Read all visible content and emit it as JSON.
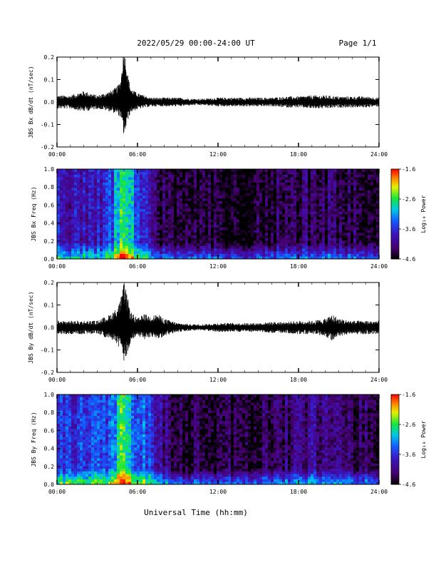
{
  "header": {
    "title": "2022/05/29  00:00-24:00 UT",
    "page": "Page 1/1"
  },
  "xlabel": "Universal Time (hh:mm)",
  "x_ticks": [
    "00:00",
    "06:00",
    "12:00",
    "18:00",
    "24:00"
  ],
  "colorbar": {
    "label": "Log₁₀ Power",
    "ticks": [
      "-1.6",
      "-2.6",
      "-3.6",
      "-4.6"
    ],
    "range": [
      -4.6,
      -1.6
    ]
  },
  "chart_data": [
    {
      "type": "line",
      "id": "bx_timeseries",
      "ylabel": "JBS Bx dB/dt (nT/sec)",
      "x": [
        "00:00",
        "01:00",
        "02:00",
        "03:00",
        "04:00",
        "04:30",
        "04:45",
        "05:00",
        "05:15",
        "05:30",
        "06:00",
        "07:00",
        "08:00",
        "09:00",
        "10:00",
        "11:00",
        "12:00",
        "13:00",
        "14:00",
        "15:00",
        "16:00",
        "17:00",
        "18:00",
        "19:00",
        "20:00",
        "21:00",
        "22:00",
        "23:00",
        "24:00"
      ],
      "series": [
        {
          "values": [
            0.0,
            0.0,
            0.01,
            0.0,
            0.01,
            0.02,
            0.04,
            0.13,
            0.06,
            0.02,
            0.01,
            0.0,
            0.0,
            0.0,
            0.0,
            0.0,
            0.0,
            0.0,
            0.0,
            0.0,
            0.0,
            0.0,
            0.0,
            0.0,
            0.0,
            0.0,
            0.0,
            0.0,
            0.0
          ]
        },
        {
          "values": [
            0.03,
            0.03,
            0.04,
            0.03,
            0.04,
            0.05,
            0.06,
            0.12,
            0.07,
            0.04,
            0.03,
            0.02,
            0.02,
            0.02,
            0.015,
            0.015,
            0.02,
            0.02,
            0.02,
            0.02,
            0.02,
            0.025,
            0.025,
            0.03,
            0.03,
            0.025,
            0.025,
            0.025,
            0.02
          ]
        }
      ],
      "x_ticks": [
        "00:00",
        "06:00",
        "12:00",
        "18:00",
        "24:00"
      ],
      "y_ticks": [
        "0.2",
        "0.1",
        "0.0",
        "-0.1",
        "-0.2"
      ],
      "ylim": [
        -0.2,
        0.2
      ]
    },
    {
      "type": "heatmap",
      "id": "bx_spectrogram",
      "ylabel": "JBS Bx Freq (Hz)",
      "x_ticks": [
        "00:00",
        "06:00",
        "12:00",
        "18:00",
        "24:00"
      ],
      "y_ticks": [
        "1.0",
        "0.8",
        "0.6",
        "0.4",
        "0.2",
        "0.0"
      ],
      "ylim": [
        0.0,
        1.0
      ],
      "power_profile_hours": [
        0,
        1,
        2,
        3,
        4,
        4.5,
        5,
        5.5,
        6,
        6.5,
        7,
        7.5,
        8,
        9,
        10,
        12,
        14,
        16,
        18,
        20,
        22,
        24
      ],
      "power_profile_log10": [
        -3.8,
        -3.9,
        -3.8,
        -3.8,
        -3.6,
        -3.0,
        -2.6,
        -3.0,
        -3.6,
        -3.7,
        -3.8,
        -4.3,
        -4.4,
        -4.5,
        -4.5,
        -4.5,
        -4.5,
        -4.4,
        -4.3,
        -4.3,
        -4.4,
        -4.4
      ]
    },
    {
      "type": "line",
      "id": "by_timeseries",
      "ylabel": "JBS By dB/dt (nT/sec)",
      "x": [
        "00:00",
        "01:00",
        "02:00",
        "03:00",
        "04:00",
        "04:30",
        "04:45",
        "05:00",
        "05:15",
        "05:30",
        "06:00",
        "06:30",
        "07:00",
        "07:30",
        "08:00",
        "09:00",
        "10:00",
        "11:00",
        "12:00",
        "13:00",
        "14:00",
        "15:00",
        "16:00",
        "17:00",
        "18:00",
        "19:00",
        "20:00",
        "20:30",
        "21:00",
        "22:00",
        "23:00",
        "24:00"
      ],
      "series": [
        {
          "values": [
            0.0,
            0.0,
            0.0,
            0.0,
            0.01,
            0.02,
            0.03,
            0.05,
            0.03,
            0.01,
            0.0,
            0.01,
            0.01,
            0.01,
            0.0,
            0.0,
            0.0,
            0.0,
            0.0,
            0.0,
            0.0,
            0.0,
            0.0,
            0.0,
            0.0,
            0.0,
            0.0,
            0.0,
            0.0,
            0.0,
            0.0,
            0.0
          ]
        },
        {
          "values": [
            0.03,
            0.03,
            0.03,
            0.03,
            0.05,
            0.07,
            0.1,
            0.15,
            0.11,
            0.06,
            0.04,
            0.05,
            0.04,
            0.05,
            0.04,
            0.02,
            0.015,
            0.015,
            0.02,
            0.02,
            0.02,
            0.02,
            0.025,
            0.025,
            0.03,
            0.03,
            0.04,
            0.06,
            0.04,
            0.03,
            0.03,
            0.03
          ]
        }
      ],
      "x_ticks": [
        "00:00",
        "06:00",
        "12:00",
        "18:00",
        "24:00"
      ],
      "y_ticks": [
        "0.2",
        "0.1",
        "0.0",
        "-0.1",
        "-0.2"
      ],
      "ylim": [
        -0.2,
        0.2
      ]
    },
    {
      "type": "heatmap",
      "id": "by_spectrogram",
      "ylabel": "JBS By Freq (Hz)",
      "x_ticks": [
        "00:00",
        "06:00",
        "12:00",
        "18:00",
        "24:00"
      ],
      "y_ticks": [
        "1.0",
        "0.8",
        "0.6",
        "0.4",
        "0.2",
        "0.0"
      ],
      "ylim": [
        0.0,
        1.0
      ],
      "power_profile_hours": [
        0,
        1,
        2,
        3,
        4,
        4.5,
        5,
        5.5,
        6,
        6.5,
        7,
        7.5,
        8,
        9,
        10,
        12,
        14,
        16,
        18,
        20,
        22,
        24
      ],
      "power_profile_log10": [
        -3.6,
        -3.6,
        -3.5,
        -3.6,
        -3.4,
        -2.9,
        -2.5,
        -2.9,
        -3.5,
        -3.4,
        -3.6,
        -3.8,
        -4.1,
        -4.3,
        -4.4,
        -4.4,
        -4.4,
        -4.3,
        -4.2,
        -4.0,
        -4.3,
        -4.3
      ]
    }
  ]
}
